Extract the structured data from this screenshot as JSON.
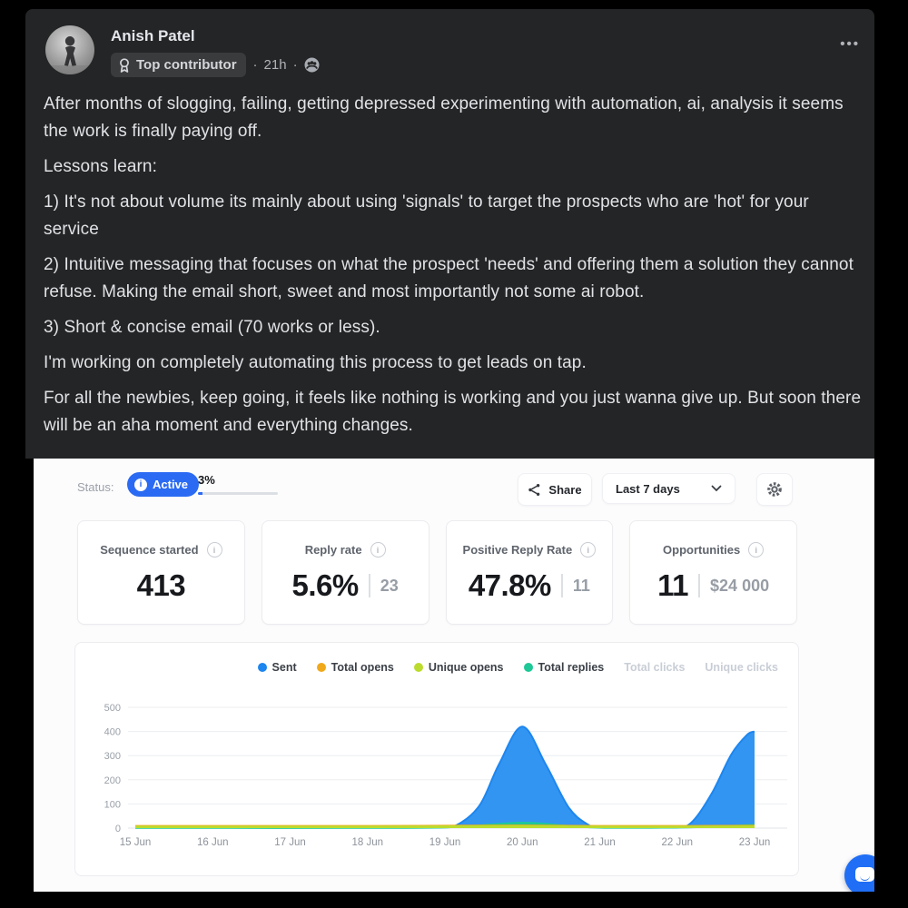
{
  "post": {
    "author": "Anish Patel",
    "badge_label": "Top contributor",
    "separator": "·",
    "timestamp": "21h",
    "menu_glyph": "•••",
    "paragraphs": [
      "After months of slogging, failing, getting depressed experimenting with automation, ai, analysis it seems the work is finally paying off.",
      "Lessons learn:",
      "1) It's not about volume its mainly about using 'signals' to target the prospects who are 'hot' for your service",
      "2) Intuitive messaging that focuses on what the prospect 'needs' and offering them a solution they cannot refuse. Making the email short, sweet and most importantly not some ai robot.",
      "3) Short & concise email (70 works or less).",
      "I'm working on completely automating this process to get leads on tap.",
      " For all the newbies, keep going, it feels like nothing is working and you just wanna give up. But soon there will be an aha moment and everything changes."
    ]
  },
  "dashboard": {
    "status_label": "Status:",
    "status_value": "Active",
    "status_color": "#2b6bf3",
    "info_glyph": "i",
    "progress_label": "3%",
    "progress_percent": 3,
    "share_label": "Share",
    "date_range_value": "Last 7 days",
    "cards": [
      {
        "title": "Sequence started",
        "value": "413",
        "secondary": ""
      },
      {
        "title": "Reply rate",
        "value": "5.6%",
        "secondary": "23"
      },
      {
        "title": "Positive Reply Rate",
        "value": "47.8%",
        "secondary": "11"
      },
      {
        "title": "Opportunities",
        "value": "11",
        "secondary": "$24 000"
      }
    ]
  },
  "chart_data": {
    "type": "area",
    "title": "",
    "xlabel": "",
    "ylabel": "",
    "x_categories": [
      "15 Jun",
      "16 Jun",
      "17 Jun",
      "18 Jun",
      "19 Jun",
      "20 Jun",
      "21 Jun",
      "22 Jun",
      "23 Jun"
    ],
    "ylim": [
      0,
      500
    ],
    "yticks": [
      0,
      100,
      200,
      300,
      400,
      500
    ],
    "grid": true,
    "legend_position": "top-right",
    "series": [
      {
        "name": "Sent",
        "color": "#1d86ef",
        "fill": "#3295f2",
        "active": true,
        "zorder": 1,
        "points": [
          [
            0,
            2
          ],
          [
            1,
            2
          ],
          [
            2,
            2
          ],
          [
            3,
            2
          ],
          [
            3.9,
            3
          ],
          [
            4.15,
            12
          ],
          [
            4.45,
            95
          ],
          [
            4.7,
            265
          ],
          [
            5,
            420
          ],
          [
            5.3,
            265
          ],
          [
            5.6,
            85
          ],
          [
            5.85,
            14
          ],
          [
            6,
            4
          ],
          [
            6.5,
            3
          ],
          [
            7,
            3
          ],
          [
            7.2,
            28
          ],
          [
            7.45,
            145
          ],
          [
            7.7,
            305
          ],
          [
            7.9,
            385
          ],
          [
            8,
            400
          ]
        ]
      },
      {
        "name": "Total opens",
        "color": "#f0a91b",
        "fill": "#f0a91b",
        "active": true,
        "zorder": 3,
        "points": [
          [
            0,
            9
          ],
          [
            1,
            9
          ],
          [
            2,
            9
          ],
          [
            3,
            9
          ],
          [
            4,
            10
          ],
          [
            5,
            11
          ],
          [
            6,
            9
          ],
          [
            7,
            9
          ],
          [
            8,
            10
          ]
        ]
      },
      {
        "name": "Unique opens",
        "color": "#bbdc2e",
        "fill": "#bbdc2e",
        "active": true,
        "zorder": 4,
        "points": [
          [
            0,
            6
          ],
          [
            1,
            6
          ],
          [
            2,
            6
          ],
          [
            3,
            6
          ],
          [
            4,
            7
          ],
          [
            5,
            8
          ],
          [
            6,
            6
          ],
          [
            7,
            6
          ],
          [
            8,
            7
          ]
        ]
      },
      {
        "name": "Total replies",
        "color": "#1ec897",
        "fill": "#1ec897",
        "active": true,
        "zorder": 2,
        "points": [
          [
            0,
            1
          ],
          [
            3.5,
            1
          ],
          [
            4.2,
            6
          ],
          [
            5,
            22
          ],
          [
            5.6,
            9
          ],
          [
            6,
            2
          ],
          [
            6.8,
            2
          ],
          [
            7.4,
            5
          ],
          [
            8,
            14
          ]
        ]
      },
      {
        "name": "Total clicks",
        "active": false
      },
      {
        "name": "Unique clicks",
        "active": false
      }
    ]
  }
}
